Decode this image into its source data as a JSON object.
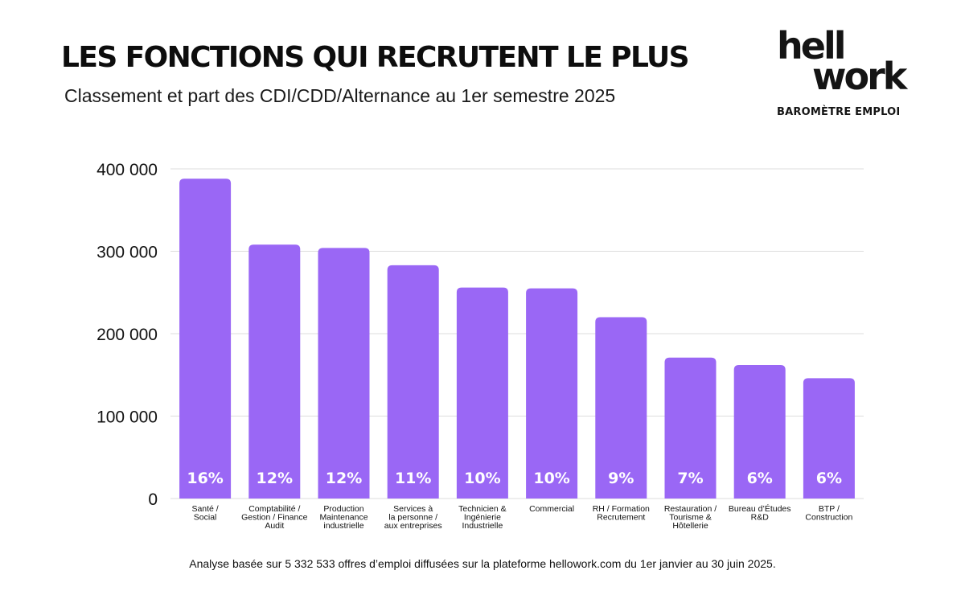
{
  "header": {
    "title": "LES FONCTIONS QUI RECRUTENT LE PLUS",
    "subtitle": "Classement et part des CDI/CDD/Alternance au 1er semestre 2025"
  },
  "logo": {
    "line1": "hell",
    "line2": "work",
    "tagline": "BAROMÈTRE EMPLOI"
  },
  "footer": {
    "note": "Analyse basée sur 5 332 533 offres d’emploi diffusées sur la plateforme hellowork.com du 1er janvier au 30 juin 2025."
  },
  "colors": {
    "bar": "#9a67f5",
    "grid": "#dddddd",
    "text": "#111111",
    "label": "#ffffff"
  },
  "chart_data": {
    "type": "bar",
    "title": "LES FONCTIONS QUI RECRUTENT LE PLUS",
    "subtitle": "Classement et part des CDI/CDD/Alternance au 1er semestre 2025",
    "categories": [
      [
        "Santé /",
        "Social"
      ],
      [
        "Comptabilité /",
        "Gestion / Finance",
        "Audit"
      ],
      [
        "Production",
        "Maintenance",
        "industrielle"
      ],
      [
        "Services à",
        "la personne /",
        "aux entreprises"
      ],
      [
        "Technicien &",
        "Ingénierie",
        "Industrielle"
      ],
      [
        "Commercial"
      ],
      [
        "RH / Formation",
        "Recrutement"
      ],
      [
        "Restauration /",
        "Tourisme &",
        "Hôtellerie"
      ],
      [
        "Bureau d’Études",
        "R&D"
      ],
      [
        "BTP /",
        "Construction"
      ]
    ],
    "values": [
      388000,
      308000,
      304000,
      283000,
      256000,
      255000,
      220000,
      171000,
      162000,
      146000
    ],
    "data_labels": [
      "16%",
      "12%",
      "12%",
      "11%",
      "10%",
      "10%",
      "9%",
      "7%",
      "6%",
      "6%"
    ],
    "y_ticks": [
      0,
      100000,
      200000,
      300000,
      400000
    ],
    "y_tick_labels": [
      "0",
      "100 000",
      "200 000",
      "300 000",
      "400 000"
    ],
    "ylim": [
      0,
      400000
    ],
    "grid": true,
    "legend": "none"
  }
}
